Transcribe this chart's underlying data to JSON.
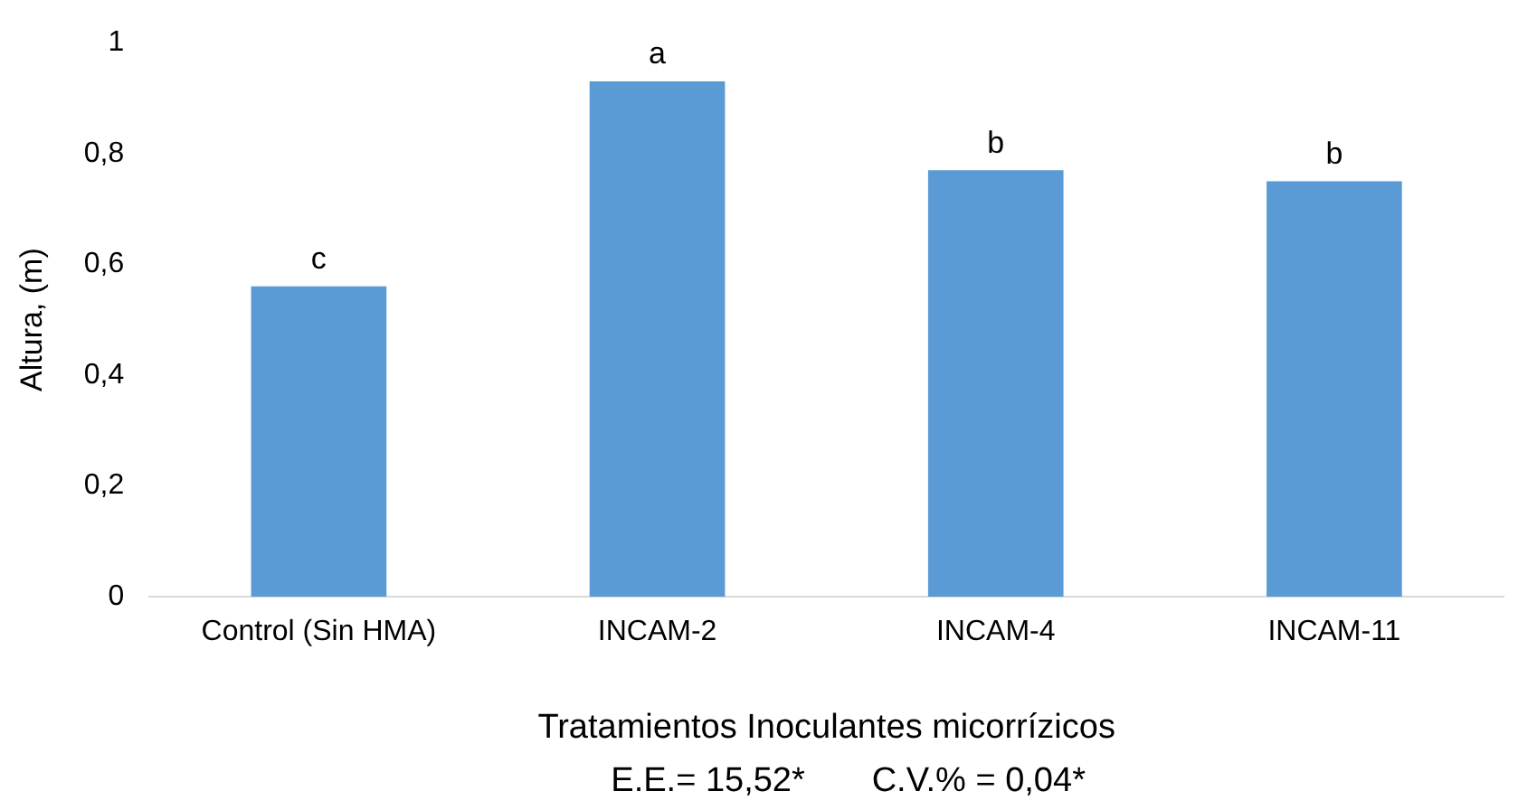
{
  "chart_data": {
    "type": "bar",
    "categories": [
      "Control (Sin HMA)",
      "INCAM-2",
      "INCAM-4",
      "INCAM-11"
    ],
    "values": [
      0.56,
      0.93,
      0.77,
      0.75
    ],
    "color": "#5b9bd5",
    "ylabel": "Altura, (m)",
    "xlabel": "Tratamientos Inoculantes micorrízicos",
    "ylim": [
      0,
      1
    ],
    "yticks": [
      0,
      {
        "value": 0.2,
        "label": "0,2"
      },
      {
        "value": 0.4,
        "label": "0,4"
      },
      {
        "value": 0.6,
        "label": "0,6"
      },
      {
        "value": 0.8,
        "label": "0,8"
      },
      1
    ],
    "grid": false,
    "legend": false,
    "annotations": [
      {
        "text": "c",
        "x": "Control (Sin HMA)",
        "y": 0.56
      },
      {
        "text": "a",
        "x": "INCAM-2",
        "y": 0.93
      },
      {
        "text": "b",
        "x": "INCAM-4",
        "y": 0.77
      },
      {
        "text": "b",
        "x": "INCAM-11",
        "y": 0.75
      },
      "E.E.= 15,52*       C.V.% = 0,04*"
    ]
  }
}
